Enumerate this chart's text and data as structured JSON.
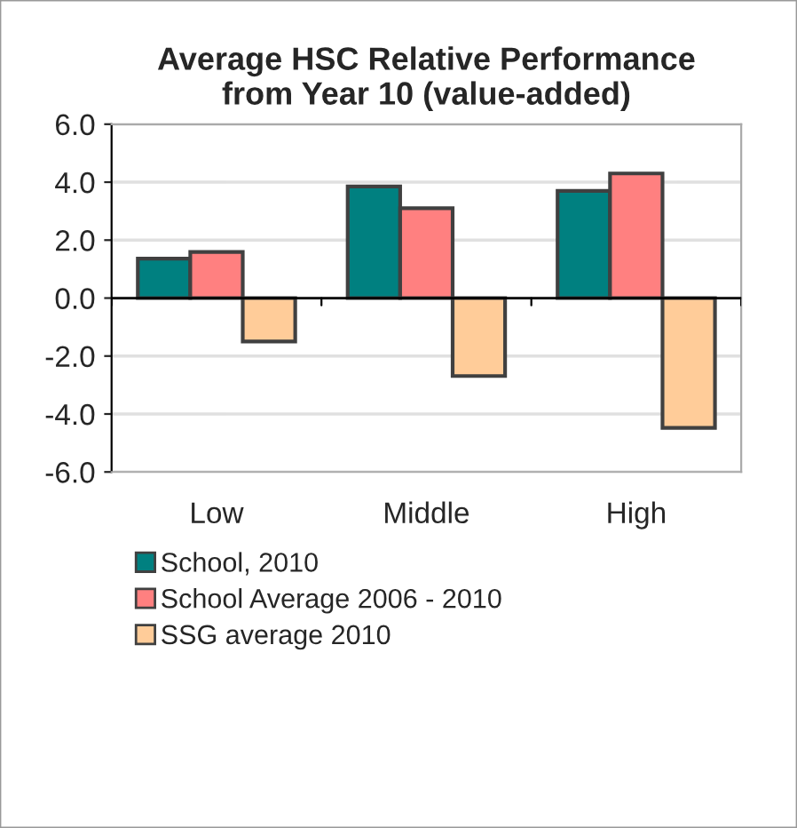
{
  "chart_data": {
    "type": "bar",
    "title": "Average HSC Relative Performance\nfrom Year 10 (value-added)",
    "categories": [
      "Low",
      "Middle",
      "High"
    ],
    "series": [
      {
        "name": "School, 2010",
        "color": "#008080",
        "values": [
          1.36,
          3.85,
          3.7
        ]
      },
      {
        "name": "School Average 2006 - 2010",
        "color": "#ff8080",
        "values": [
          1.59,
          3.1,
          4.3
        ]
      },
      {
        "name": "SSG average 2010",
        "color": "#ffcc99",
        "values": [
          -1.5,
          -2.69,
          -4.48
        ]
      }
    ],
    "ylim": [
      -6,
      6
    ],
    "yticks": [
      {
        "value": -6,
        "label": "-6.0"
      },
      {
        "value": -4,
        "label": "-4.0"
      },
      {
        "value": -2,
        "label": "-2.0"
      },
      {
        "value": 0,
        "label": "0.0"
      },
      {
        "value": 2,
        "label": "2.0"
      },
      {
        "value": 4,
        "label": "4.0"
      },
      {
        "value": 6,
        "label": "6.0"
      }
    ],
    "grid": "y",
    "legend": "bottom"
  }
}
